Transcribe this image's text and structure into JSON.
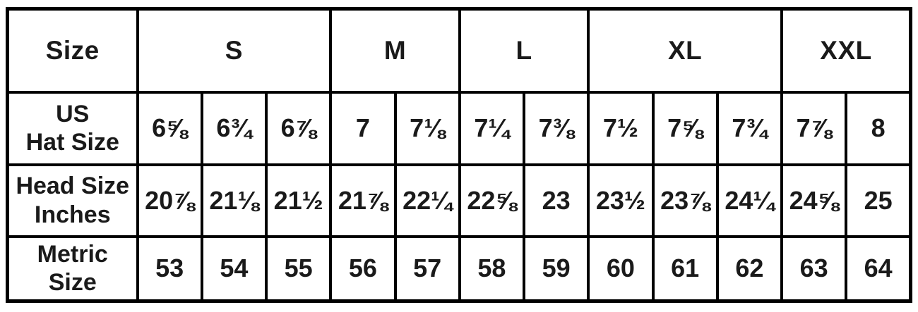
{
  "chart_data": {
    "type": "table",
    "corner_label": "Size",
    "groups": [
      {
        "label": "S",
        "span": 3
      },
      {
        "label": "M",
        "span": 2
      },
      {
        "label": "L",
        "span": 2
      },
      {
        "label": "XL",
        "span": 3
      },
      {
        "label": "XXL",
        "span": 2
      }
    ],
    "rows": [
      {
        "label": [
          "US",
          "Hat Size"
        ],
        "cells": [
          "6⅝",
          "6¾",
          "6⅞",
          "7",
          "7⅛",
          "7¼",
          "7⅜",
          "7½",
          "7⅝",
          "7¾",
          "7⅞",
          "8"
        ]
      },
      {
        "label": [
          "Head Size",
          "Inches"
        ],
        "cells": [
          "20⅞",
          "21⅛",
          "21½",
          "21⅞",
          "22¼",
          "22⅝",
          "23",
          "23½",
          "23⅞",
          "24¼",
          "24⅝",
          "25"
        ]
      },
      {
        "label": [
          "Metric",
          "Size"
        ],
        "cells": [
          "53",
          "54",
          "55",
          "56",
          "57",
          "58",
          "59",
          "60",
          "61",
          "62",
          "63",
          "64"
        ]
      }
    ]
  },
  "colors": {
    "border": "#000000",
    "text": "#1a1a1a",
    "background": "#ffffff"
  }
}
